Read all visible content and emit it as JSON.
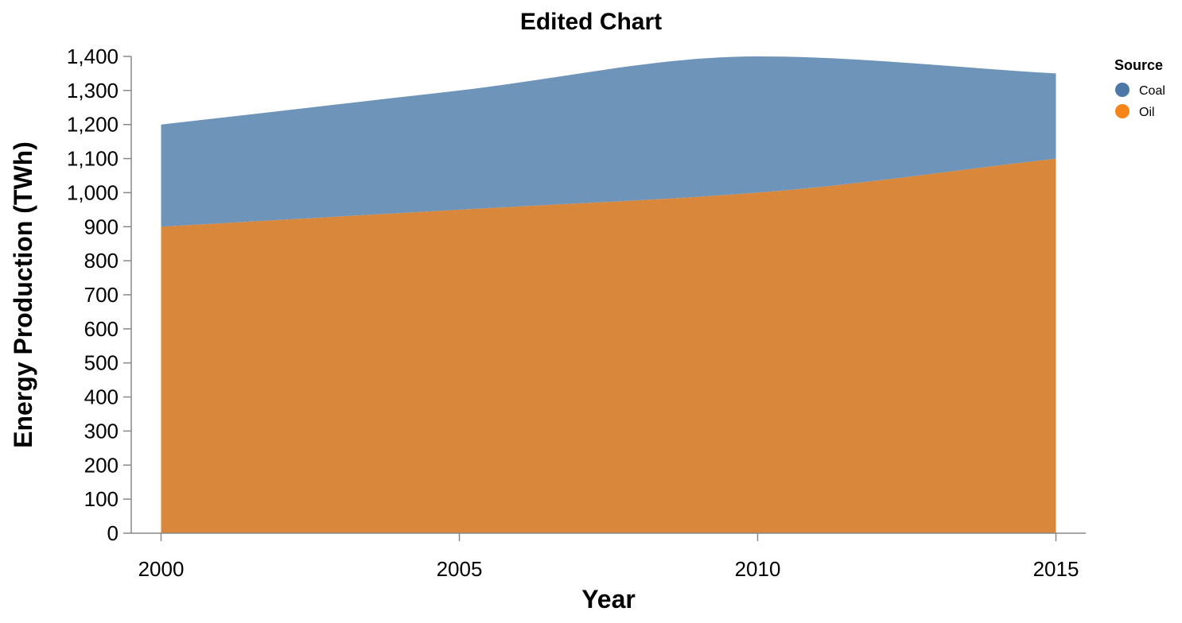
{
  "chart_data": {
    "type": "area",
    "stacked": true,
    "title": "Edited Chart",
    "xlabel": "Year",
    "ylabel": "Energy Production (TWh)",
    "x": [
      2000,
      2005,
      2010,
      2015
    ],
    "x_ticks": [
      "2000",
      "2005",
      "2010",
      "2015"
    ],
    "xlim": [
      1999.5,
      2015.5
    ],
    "ylim": [
      0,
      1400
    ],
    "y_ticks": [
      "0",
      "100",
      "200",
      "300",
      "400",
      "500",
      "600",
      "700",
      "800",
      "900",
      "1,000",
      "1,100",
      "1,200",
      "1,300",
      "1,400"
    ],
    "y_tick_values": [
      0,
      100,
      200,
      300,
      400,
      500,
      600,
      700,
      800,
      900,
      1000,
      1100,
      1200,
      1300,
      1400
    ],
    "grid": false,
    "legend": {
      "title": "Source",
      "position": "top-right"
    },
    "series": [
      {
        "name": "Oil",
        "values": [
          900,
          950,
          1000,
          1100
        ],
        "color": "#d9873a"
      },
      {
        "name": "Coal",
        "values": [
          300,
          350,
          400,
          250
        ],
        "color": "#6f94b9"
      }
    ],
    "legend_entries": [
      {
        "label": "Coal",
        "color": "#4c78a8"
      },
      {
        "label": "Oil",
        "color": "#f58518"
      }
    ]
  }
}
